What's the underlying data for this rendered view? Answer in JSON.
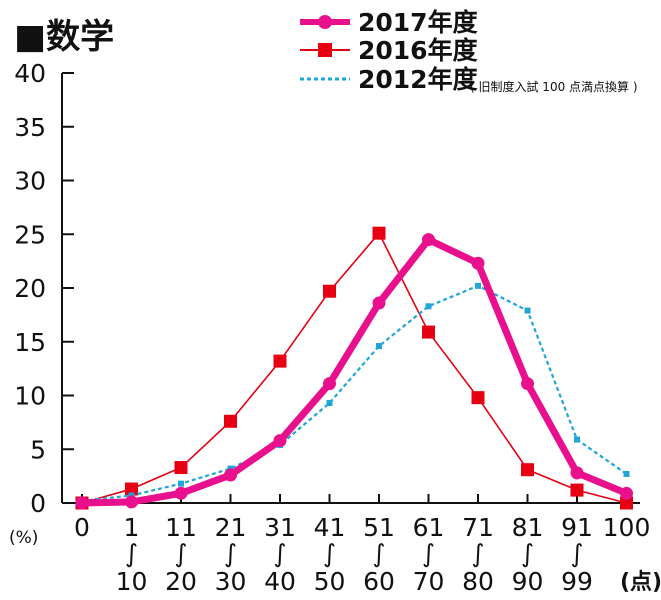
{
  "chart_data": {
    "type": "line",
    "title": "■数学",
    "ylabel": "(%)",
    "xlabel": "(点)",
    "ylim": [
      0,
      40
    ],
    "yticks": [
      "0",
      "5",
      "10",
      "15",
      "20",
      "25",
      "30",
      "35",
      "40"
    ],
    "grid": false,
    "legend_position": "top-right",
    "categories": [
      {
        "top": "0",
        "bottom": ""
      },
      {
        "top": "1",
        "bottom": "10"
      },
      {
        "top": "11",
        "bottom": "20"
      },
      {
        "top": "21",
        "bottom": "30"
      },
      {
        "top": "31",
        "bottom": "40"
      },
      {
        "top": "41",
        "bottom": "50"
      },
      {
        "top": "51",
        "bottom": "60"
      },
      {
        "top": "61",
        "bottom": "70"
      },
      {
        "top": "71",
        "bottom": "80"
      },
      {
        "top": "81",
        "bottom": "90"
      },
      {
        "top": "91",
        "bottom": "99"
      },
      {
        "top": "100",
        "bottom": ""
      }
    ],
    "range_mark": "∫",
    "series": [
      {
        "name": "2017年度",
        "note": "",
        "color": "#e8108c",
        "marker": "circle",
        "style": "solid-thick",
        "values": [
          0,
          0.1,
          0.9,
          2.6,
          5.8,
          11.1,
          18.6,
          24.5,
          22.3,
          11.1,
          2.8,
          0.9
        ]
      },
      {
        "name": "2016年度",
        "note": "",
        "color": "#e60012",
        "marker": "square",
        "style": "solid-thin",
        "values": [
          0,
          1.3,
          3.3,
          7.6,
          13.2,
          19.7,
          25.1,
          15.9,
          9.8,
          3.1,
          1.2,
          0
        ]
      },
      {
        "name": "2012年度",
        "note": "( 旧制度入試 100 点満点換算 )",
        "color": "#1fa5d8",
        "marker": "small-square",
        "style": "dotted",
        "values": [
          0.2,
          0.7,
          1.8,
          3.2,
          5.4,
          9.3,
          14.6,
          18.3,
          20.2,
          17.9,
          5.9,
          2.7
        ]
      }
    ]
  }
}
